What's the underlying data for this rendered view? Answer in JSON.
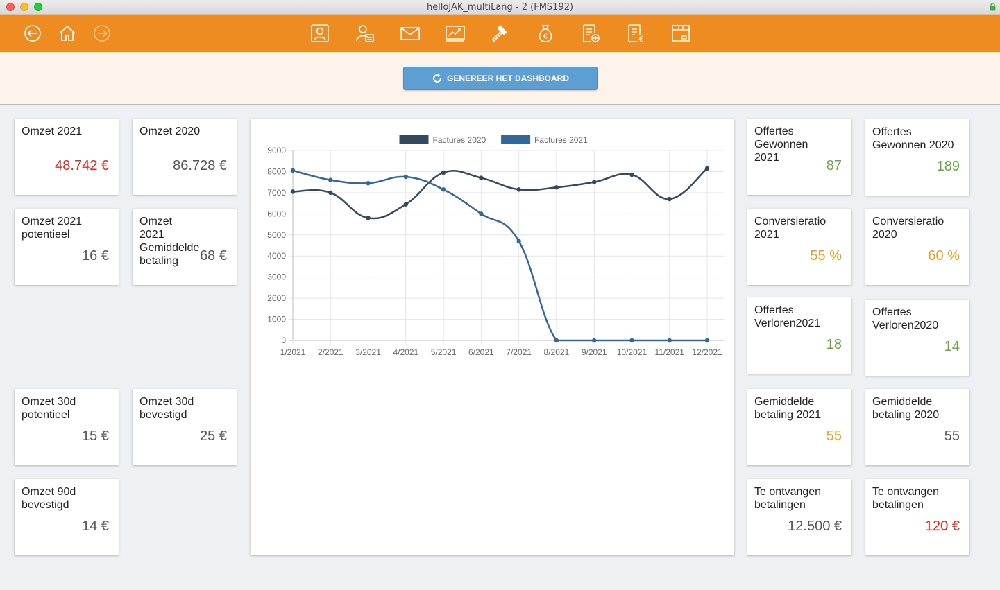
{
  "window": {
    "title": "helloJAK_multiLang - 2 (FMS192)"
  },
  "toolbar": {
    "nav_icons": [
      "back-arrow-icon",
      "home-icon",
      "forward-arrow-icon"
    ],
    "module_icons": [
      "contact-card-icon",
      "user-document-icon",
      "mail-icon",
      "chart-board-icon",
      "gavel-icon",
      "money-bag-icon",
      "invoice-add-icon",
      "invoice-euro-icon",
      "archive-box-icon"
    ]
  },
  "generate_button": {
    "label": "GENEREER HET DASHBOARD"
  },
  "cards": [
    {
      "label": "Omzet 2021",
      "value": "48.742 €",
      "color": "red"
    },
    {
      "label": "Omzet 2020",
      "value": "86.728 €",
      "color": "grey"
    },
    {
      "label": "Omzet 2021 potentieel",
      "value": "16 €",
      "color": "grey"
    },
    {
      "label": "Omzet 2021 Gemiddelde betaling",
      "value": "68 €",
      "color": "grey"
    },
    {
      "label": "Omzet 30d potentieel",
      "value": "15 €",
      "color": "grey"
    },
    {
      "label": "Omzet 30d bevestigd",
      "value": "25 €",
      "color": "grey"
    },
    {
      "label": "Omzet 90d bevestigd",
      "value": "14 €",
      "color": "grey"
    },
    {
      "label": "Offertes Gewonnen 2021",
      "value": "87",
      "color": "green"
    },
    {
      "label": "Offertes Gewonnen 2020",
      "value": "189",
      "color": "green"
    },
    {
      "label": "Conversieratio 2021",
      "value": "55 %",
      "color": "orange"
    },
    {
      "label": "Conversieratio 2020",
      "value": "60 %",
      "color": "orange"
    },
    {
      "label": "Offertes Verloren2021",
      "value": "18",
      "color": "green"
    },
    {
      "label": "Offertes Verloren2020",
      "value": "14",
      "color": "green"
    },
    {
      "label": "Gemiddelde betaling 2021",
      "value": "55",
      "color": "orange"
    },
    {
      "label": "Gemiddelde betaling 2020",
      "value": "55",
      "color": "grey"
    },
    {
      "label": "Te ontvangen betalingen",
      "value": "12.500 €",
      "color": "grey"
    },
    {
      "label": "Te ontvangen betalingen",
      "value": "120 €",
      "color": "red"
    }
  ],
  "chart_data": {
    "type": "line",
    "categories": [
      "1/2021",
      "2/2021",
      "3/2021",
      "4/2021",
      "5/2021",
      "6/2021",
      "7/2021",
      "8/2021",
      "9/2021",
      "10/2021",
      "11/2021",
      "12/2021"
    ],
    "series": [
      {
        "name": "Factures 2020",
        "color": "#34495e",
        "values": [
          7050,
          7000,
          5800,
          6450,
          7950,
          7700,
          7150,
          7250,
          7500,
          7850,
          6700,
          8150
        ]
      },
      {
        "name": "Factures 2021",
        "color": "#336699",
        "values": [
          8050,
          7600,
          7450,
          7750,
          7150,
          6000,
          4700,
          0,
          0,
          0,
          0,
          0
        ]
      }
    ],
    "ylim": [
      0,
      9000
    ],
    "yticks": [
      "0",
      "1000",
      "2000",
      "3000",
      "4000",
      "5000",
      "6000",
      "7000",
      "8000",
      "9000"
    ],
    "grid": true,
    "legend": "top-center"
  }
}
